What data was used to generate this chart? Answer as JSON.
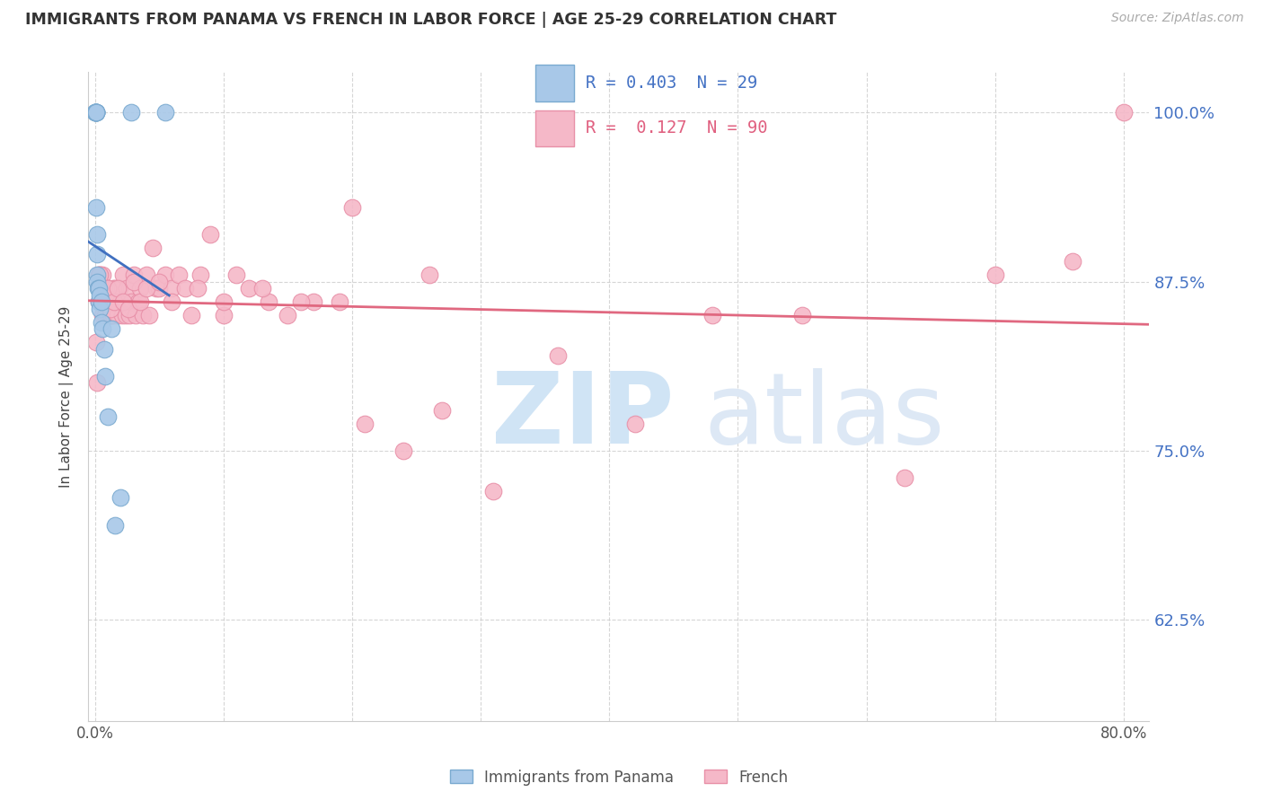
{
  "title": "IMMIGRANTS FROM PANAMA VS FRENCH IN LABOR FORCE | AGE 25-29 CORRELATION CHART",
  "source": "Source: ZipAtlas.com",
  "ylabel": "In Labor Force | Age 25-29",
  "xlim": [
    -0.005,
    0.82
  ],
  "ylim": [
    0.55,
    1.03
  ],
  "yticks": [
    0.625,
    0.75,
    0.875,
    1.0
  ],
  "ytick_labels": [
    "62.5%",
    "75.0%",
    "87.5%",
    "100.0%"
  ],
  "panama_color": "#a8c8e8",
  "french_color": "#f5b8c8",
  "panama_edge": "#7aaad0",
  "french_edge": "#e890a8",
  "panama_line_color": "#4070c0",
  "french_line_color": "#e06880",
  "panama_R": 0.403,
  "panama_N": 29,
  "french_R": 0.127,
  "french_N": 90,
  "legend_label_panama": "Immigrants from Panama",
  "legend_label_french": "French",
  "panama_x": [
    0.0003,
    0.0005,
    0.0006,
    0.0007,
    0.0008,
    0.001,
    0.001,
    0.001,
    0.0012,
    0.0015,
    0.002,
    0.002,
    0.002,
    0.0025,
    0.003,
    0.003,
    0.004,
    0.004,
    0.005,
    0.005,
    0.006,
    0.007,
    0.008,
    0.01,
    0.013,
    0.016,
    0.02,
    0.028,
    0.055
  ],
  "panama_y": [
    1.0,
    1.0,
    1.0,
    1.0,
    1.0,
    1.0,
    1.0,
    1.0,
    0.93,
    0.91,
    0.895,
    0.88,
    0.875,
    0.87,
    0.87,
    0.86,
    0.865,
    0.855,
    0.86,
    0.845,
    0.84,
    0.825,
    0.805,
    0.775,
    0.84,
    0.695,
    0.715,
    1.0,
    1.0
  ],
  "french_x": [
    0.001,
    0.002,
    0.003,
    0.003,
    0.004,
    0.004,
    0.005,
    0.006,
    0.006,
    0.007,
    0.007,
    0.008,
    0.008,
    0.009,
    0.01,
    0.01,
    0.011,
    0.012,
    0.012,
    0.013,
    0.014,
    0.014,
    0.015,
    0.016,
    0.017,
    0.018,
    0.019,
    0.02,
    0.021,
    0.022,
    0.024,
    0.025,
    0.027,
    0.028,
    0.03,
    0.032,
    0.034,
    0.035,
    0.037,
    0.04,
    0.042,
    0.045,
    0.048,
    0.05,
    0.055,
    0.06,
    0.065,
    0.07,
    0.075,
    0.082,
    0.09,
    0.1,
    0.11,
    0.12,
    0.135,
    0.15,
    0.17,
    0.19,
    0.21,
    0.24,
    0.27,
    0.31,
    0.36,
    0.42,
    0.48,
    0.55,
    0.63,
    0.7,
    0.76,
    0.8,
    0.004,
    0.006,
    0.008,
    0.01,
    0.012,
    0.015,
    0.018,
    0.022,
    0.026,
    0.03,
    0.035,
    0.04,
    0.05,
    0.06,
    0.08,
    0.1,
    0.13,
    0.16,
    0.2,
    0.26
  ],
  "french_y": [
    0.83,
    0.8,
    0.88,
    0.86,
    0.88,
    0.87,
    0.87,
    0.88,
    0.85,
    0.87,
    0.86,
    0.86,
    0.85,
    0.87,
    0.87,
    0.86,
    0.86,
    0.86,
    0.85,
    0.85,
    0.87,
    0.85,
    0.86,
    0.87,
    0.86,
    0.85,
    0.87,
    0.86,
    0.85,
    0.88,
    0.85,
    0.87,
    0.85,
    0.86,
    0.88,
    0.85,
    0.86,
    0.87,
    0.85,
    0.88,
    0.85,
    0.9,
    0.87,
    0.87,
    0.88,
    0.87,
    0.88,
    0.87,
    0.85,
    0.88,
    0.91,
    0.85,
    0.88,
    0.87,
    0.86,
    0.85,
    0.86,
    0.86,
    0.77,
    0.75,
    0.78,
    0.72,
    0.82,
    0.77,
    0.85,
    0.85,
    0.73,
    0.88,
    0.89,
    1.0,
    0.88,
    0.86,
    0.865,
    0.87,
    0.855,
    0.86,
    0.87,
    0.86,
    0.855,
    0.875,
    0.86,
    0.87,
    0.875,
    0.86,
    0.87,
    0.86,
    0.87,
    0.86,
    0.93,
    0.88
  ]
}
